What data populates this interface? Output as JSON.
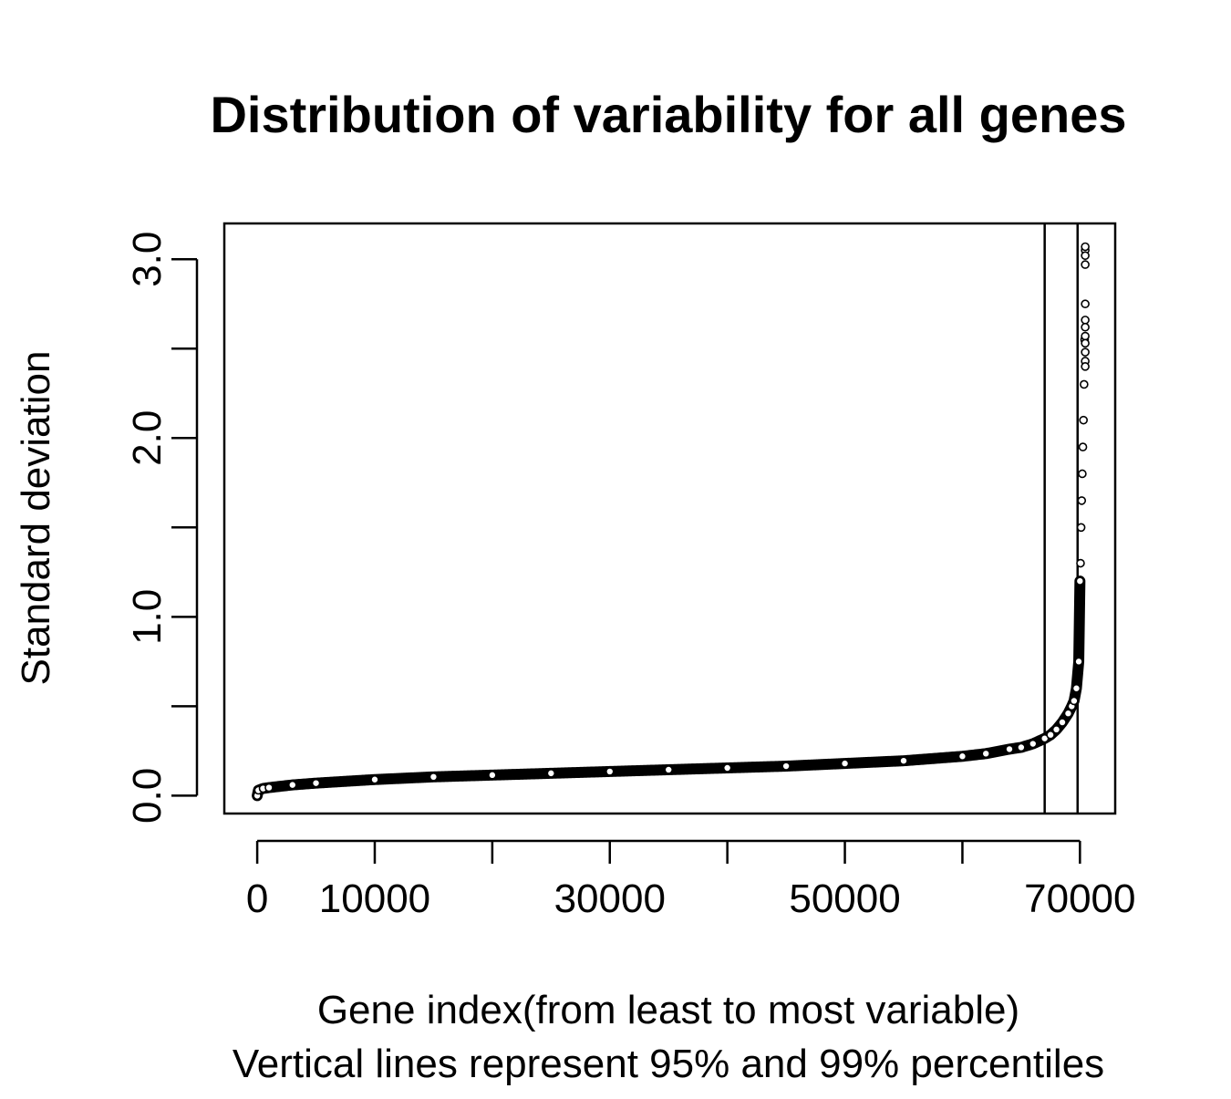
{
  "chart_data": {
    "type": "scatter",
    "title": "Distribution of variability for all genes",
    "xlabel": "Gene index(from least to most variable)",
    "subtitle": "Vertical lines represent 95% and 99% percentiles",
    "ylabel": "Standard deviation",
    "xlim": [
      -2800,
      73000
    ],
    "ylim": [
      -0.1,
      3.2
    ],
    "x_ticks": [
      0,
      10000,
      20000,
      30000,
      40000,
      50000,
      60000,
      70000
    ],
    "x_tick_labels": [
      "0",
      "10000",
      "",
      "30000",
      "",
      "50000",
      "",
      "70000"
    ],
    "y_ticks": [
      0.0,
      0.5,
      1.0,
      1.5,
      2.0,
      2.5,
      3.0
    ],
    "y_tick_labels": [
      "0.0",
      "",
      "1.0",
      "",
      "2.0",
      "",
      "3.0"
    ],
    "vertical_lines": [
      {
        "name": "95% percentile",
        "x": 67000
      },
      {
        "name": "99% percentile",
        "x": 69800
      }
    ],
    "total_points": 70500,
    "curve": {
      "x": [
        0,
        100,
        500,
        1000,
        3000,
        5000,
        10000,
        15000,
        20000,
        25000,
        30000,
        35000,
        40000,
        45000,
        50000,
        55000,
        60000,
        62000,
        64000,
        65000,
        66000,
        67000,
        67500,
        68000,
        68500,
        69000,
        69300,
        69500,
        69700,
        69900,
        70000
      ],
      "y": [
        0.0,
        0.03,
        0.04,
        0.045,
        0.06,
        0.07,
        0.09,
        0.105,
        0.115,
        0.125,
        0.135,
        0.145,
        0.155,
        0.165,
        0.18,
        0.195,
        0.22,
        0.235,
        0.26,
        0.27,
        0.29,
        0.32,
        0.34,
        0.37,
        0.41,
        0.46,
        0.5,
        0.53,
        0.6,
        0.75,
        1.2
      ]
    },
    "tail_points": {
      "x": [
        70050,
        70100,
        70150,
        70200,
        70250,
        70300,
        70350,
        70400,
        70450
      ],
      "y": [
        1.3,
        1.5,
        1.65,
        1.8,
        1.95,
        2.1,
        2.3,
        2.55,
        3.05
      ]
    },
    "extreme_points": [
      {
        "x": 70450,
        "y": 3.07
      },
      {
        "x": 70450,
        "y": 3.02
      },
      {
        "x": 70450,
        "y": 2.97
      },
      {
        "x": 70450,
        "y": 2.75
      },
      {
        "x": 70450,
        "y": 2.66
      },
      {
        "x": 70450,
        "y": 2.62
      },
      {
        "x": 70450,
        "y": 2.57
      },
      {
        "x": 70450,
        "y": 2.53
      },
      {
        "x": 70450,
        "y": 2.48
      },
      {
        "x": 70450,
        "y": 2.43
      },
      {
        "x": 70450,
        "y": 2.4
      }
    ]
  }
}
